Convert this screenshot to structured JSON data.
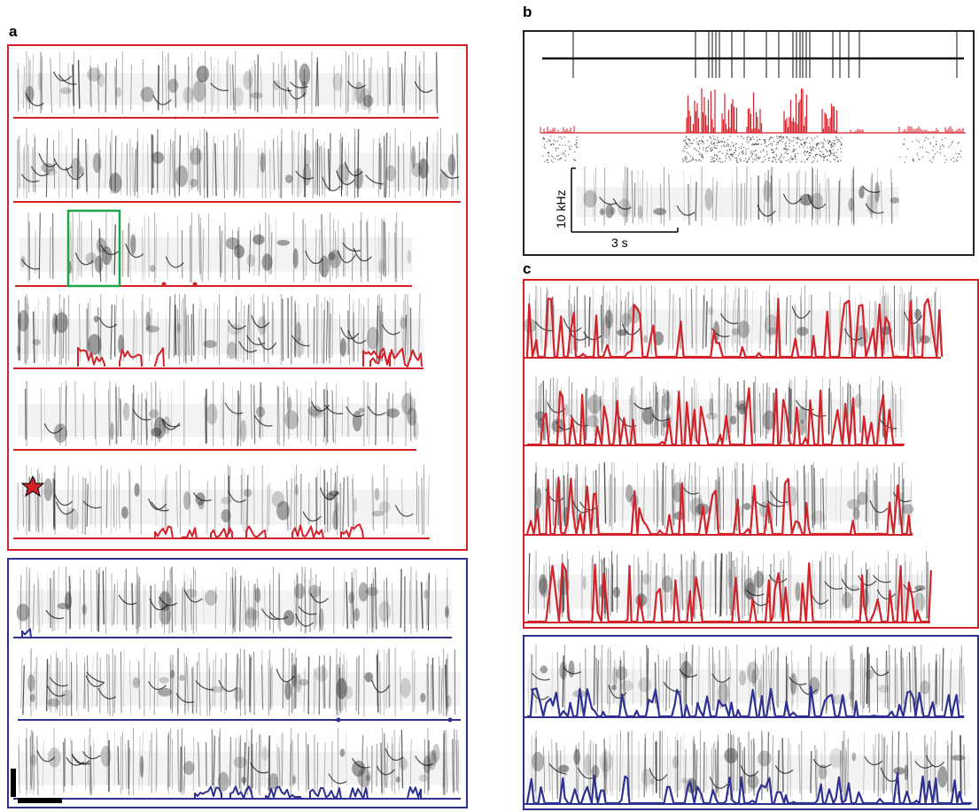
{
  "figure": {
    "panels": [
      {
        "label": "a"
      },
      {
        "label": "b"
      },
      {
        "label": "c"
      }
    ],
    "panel_b": {
      "freq_scale_label": "10 kHz",
      "time_scale_label": "3 s"
    },
    "colors": {
      "red": "#d2232a",
      "blue": "#2e3192",
      "green": "#1fa34a",
      "black": "#222222"
    },
    "panel_a": {
      "red_rows": 6,
      "blue_rows": 3,
      "highlight_box": "green",
      "marker": "red-star"
    },
    "panel_c": {
      "red_rows": 4,
      "blue_rows": 2
    }
  }
}
